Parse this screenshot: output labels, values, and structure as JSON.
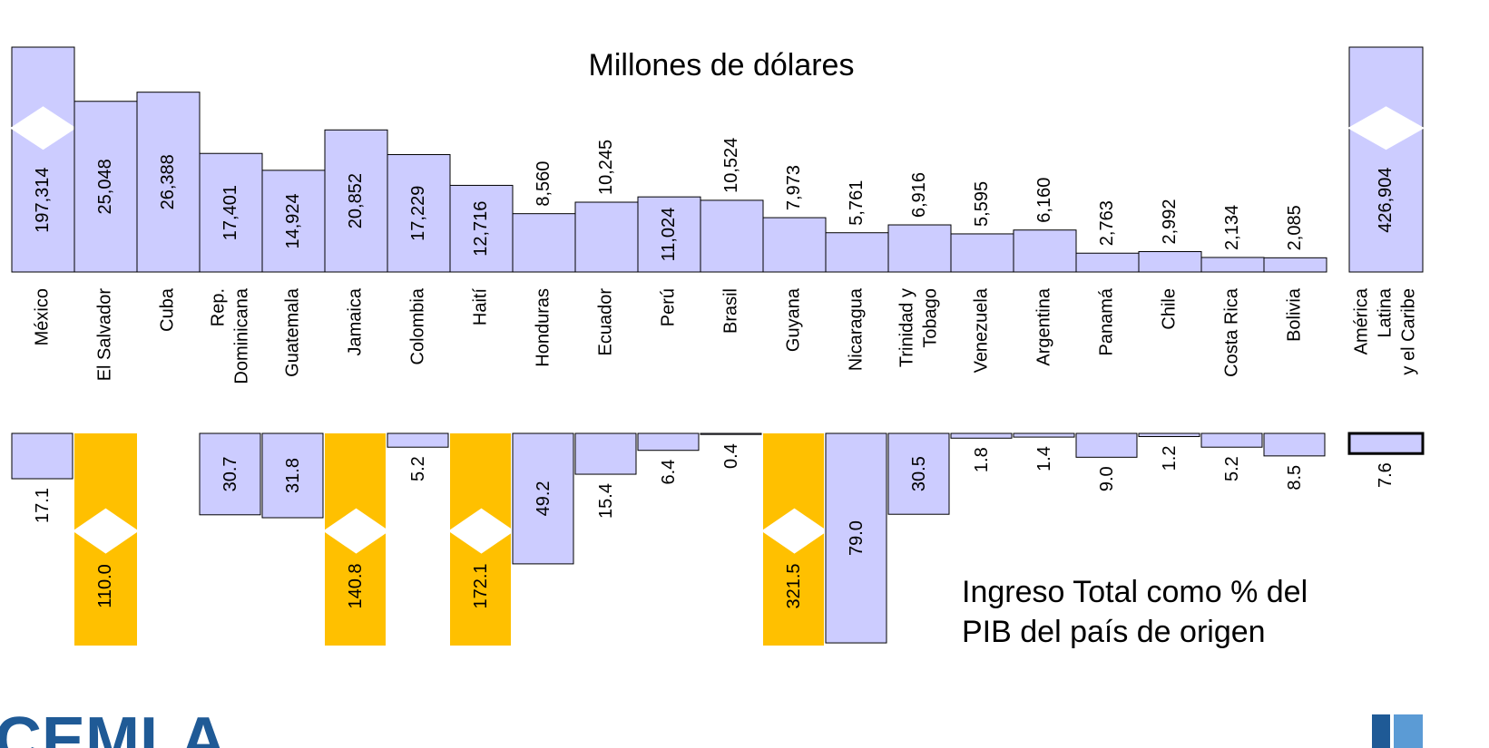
{
  "chart_data": [
    {
      "type": "bar",
      "title": "Millones de dólares",
      "categories": [
        "México",
        "El Salvador",
        "Cuba",
        "Rep.\nDominicana",
        "Guatemala",
        "Jamaica",
        "Colombia",
        "Haití",
        "Honduras",
        "Ecuador",
        "Perú",
        "Brasil",
        "Guyana",
        "Nicaragua",
        "Trinidad y\nTobago",
        "Venezuela",
        "Argentina",
        "Panamá",
        "Chile",
        "Costa Rica",
        "Bolivia",
        "América\nLatina\ny el Caribe"
      ],
      "values": [
        197314,
        25048,
        26388,
        17401,
        14924,
        20852,
        17229,
        12716,
        8560,
        10245,
        11024,
        10524,
        7973,
        5761,
        6916,
        5595,
        6160,
        2763,
        2992,
        2134,
        2085,
        426904
      ],
      "value_labels": [
        "197,314",
        "25,048",
        "26,388",
        "17,401",
        "14,924",
        "20,852",
        "17,229",
        "12,716",
        "8,560",
        "10,245",
        "11,024",
        "10,524",
        "7,973",
        "5,761",
        "6,916",
        "5,595",
        "6,160",
        "2,763",
        "2,992",
        "2,134",
        "2,085",
        "426,904"
      ],
      "color": "#ccccff",
      "ylim": [
        0,
        33000
      ]
    },
    {
      "type": "bar",
      "title": "Ingreso Total como % del\nPIB del país de origen",
      "inverted": true,
      "values": [
        17.1,
        110.0,
        null,
        30.7,
        31.8,
        140.8,
        5.2,
        172.1,
        49.2,
        15.4,
        6.4,
        0.4,
        321.5,
        79.0,
        30.5,
        1.8,
        1.4,
        9.0,
        1.2,
        5.2,
        8.5,
        7.6
      ],
      "value_labels": [
        "17.1",
        "110.0",
        null,
        "30.7",
        "31.8",
        "140.8",
        "5.2",
        "172.1",
        "49.2",
        "15.4",
        "6.4",
        "0.4",
        "321.5",
        "79.0",
        "30.5",
        "1.8",
        "1.4",
        "9.0",
        "1.2",
        "5.2",
        "8.5",
        "7.6"
      ],
      "colors": [
        "#ccccff",
        "#ffc000",
        "#ccccff",
        "#ccccff",
        "#ccccff",
        "#ffc000",
        "#ccccff",
        "#ffc000",
        "#ccccff",
        "#ccccff",
        "#ccccff",
        "#ccccff",
        "#ffc000",
        "#ccccff",
        "#ccccff",
        "#ccccff",
        "#ccccff",
        "#ccccff",
        "#ccccff",
        "#ccccff",
        "#ccccff",
        "#ccccff"
      ],
      "ylim": [
        0,
        80
      ]
    }
  ],
  "logo": "CEMLA"
}
